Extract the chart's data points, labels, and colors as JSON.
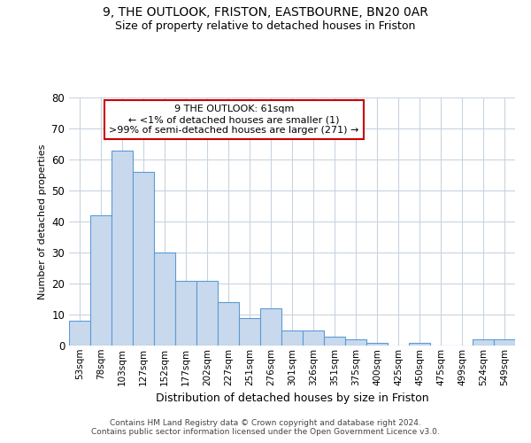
{
  "title1": "9, THE OUTLOOK, FRISTON, EASTBOURNE, BN20 0AR",
  "title2": "Size of property relative to detached houses in Friston",
  "xlabel": "Distribution of detached houses by size in Friston",
  "ylabel": "Number of detached properties",
  "categories": [
    "53sqm",
    "78sqm",
    "103sqm",
    "127sqm",
    "152sqm",
    "177sqm",
    "202sqm",
    "227sqm",
    "251sqm",
    "276sqm",
    "301sqm",
    "326sqm",
    "351sqm",
    "375sqm",
    "400sqm",
    "425sqm",
    "450sqm",
    "475sqm",
    "499sqm",
    "524sqm",
    "549sqm"
  ],
  "values": [
    8,
    42,
    63,
    56,
    30,
    21,
    21,
    14,
    9,
    12,
    5,
    5,
    3,
    2,
    1,
    0,
    1,
    0,
    0,
    2,
    2
  ],
  "bar_color": "#c9d9ed",
  "bar_edge_color": "#5b9bd5",
  "annotation_line1": "9 THE OUTLOOK: 61sqm",
  "annotation_line2": "← <1% of detached houses are smaller (1)",
  "annotation_line3": ">99% of semi-detached houses are larger (271) →",
  "annotation_box_color": "#ffffff",
  "annotation_box_edge": "#cc0000",
  "ylim": [
    0,
    80
  ],
  "yticks": [
    0,
    10,
    20,
    30,
    40,
    50,
    60,
    70,
    80
  ],
  "footer1": "Contains HM Land Registry data © Crown copyright and database right 2024.",
  "footer2": "Contains public sector information licensed under the Open Government Licence v3.0.",
  "background_color": "#ffffff",
  "grid_color": "#c8d4e0"
}
